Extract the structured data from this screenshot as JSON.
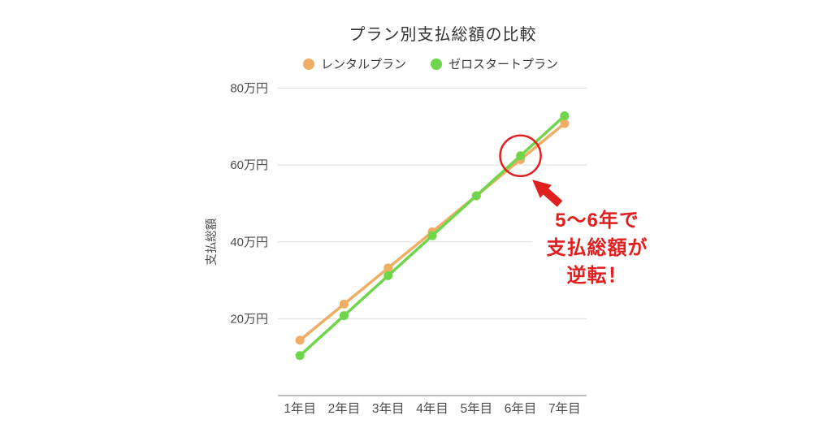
{
  "chart_data": {
    "type": "line",
    "title": "プラン別支払総額の比較",
    "ylabel": "支払総額",
    "xlabel": "",
    "categories": [
      "1年目",
      "2年目",
      "3年目",
      "4年目",
      "5年目",
      "6年目",
      "7年目"
    ],
    "series": [
      {
        "name": "レンタルプラン",
        "color": "#f0ad64",
        "values": [
          14.4,
          23.8,
          33.2,
          42.6,
          52.0,
          61.4,
          70.8
        ]
      },
      {
        "name": "ゼロスタートプラン",
        "color": "#6fd64b",
        "values": [
          10.4,
          20.8,
          31.2,
          41.6,
          52.0,
          62.4,
          72.8
        ]
      }
    ],
    "ylim": [
      0,
      80
    ],
    "yticks": [
      {
        "value": 20,
        "label": "20万円"
      },
      {
        "value": 40,
        "label": "40万円"
      },
      {
        "value": 60,
        "label": "60万円"
      },
      {
        "value": 80,
        "label": "80万円"
      }
    ],
    "legend_position": "top",
    "grid": "horizontal",
    "colors": {
      "gridline": "#e3e3e3",
      "axis_line": "#a6a6a6",
      "tick_label": "#4d4d4d",
      "title": "#333333"
    }
  },
  "annotation": {
    "lines": [
      "5〜6年で",
      "支払総額が",
      "逆転！"
    ],
    "color": "#e01f1f",
    "highlight": {
      "series": 1,
      "index": 5,
      "radius": 25
    }
  }
}
